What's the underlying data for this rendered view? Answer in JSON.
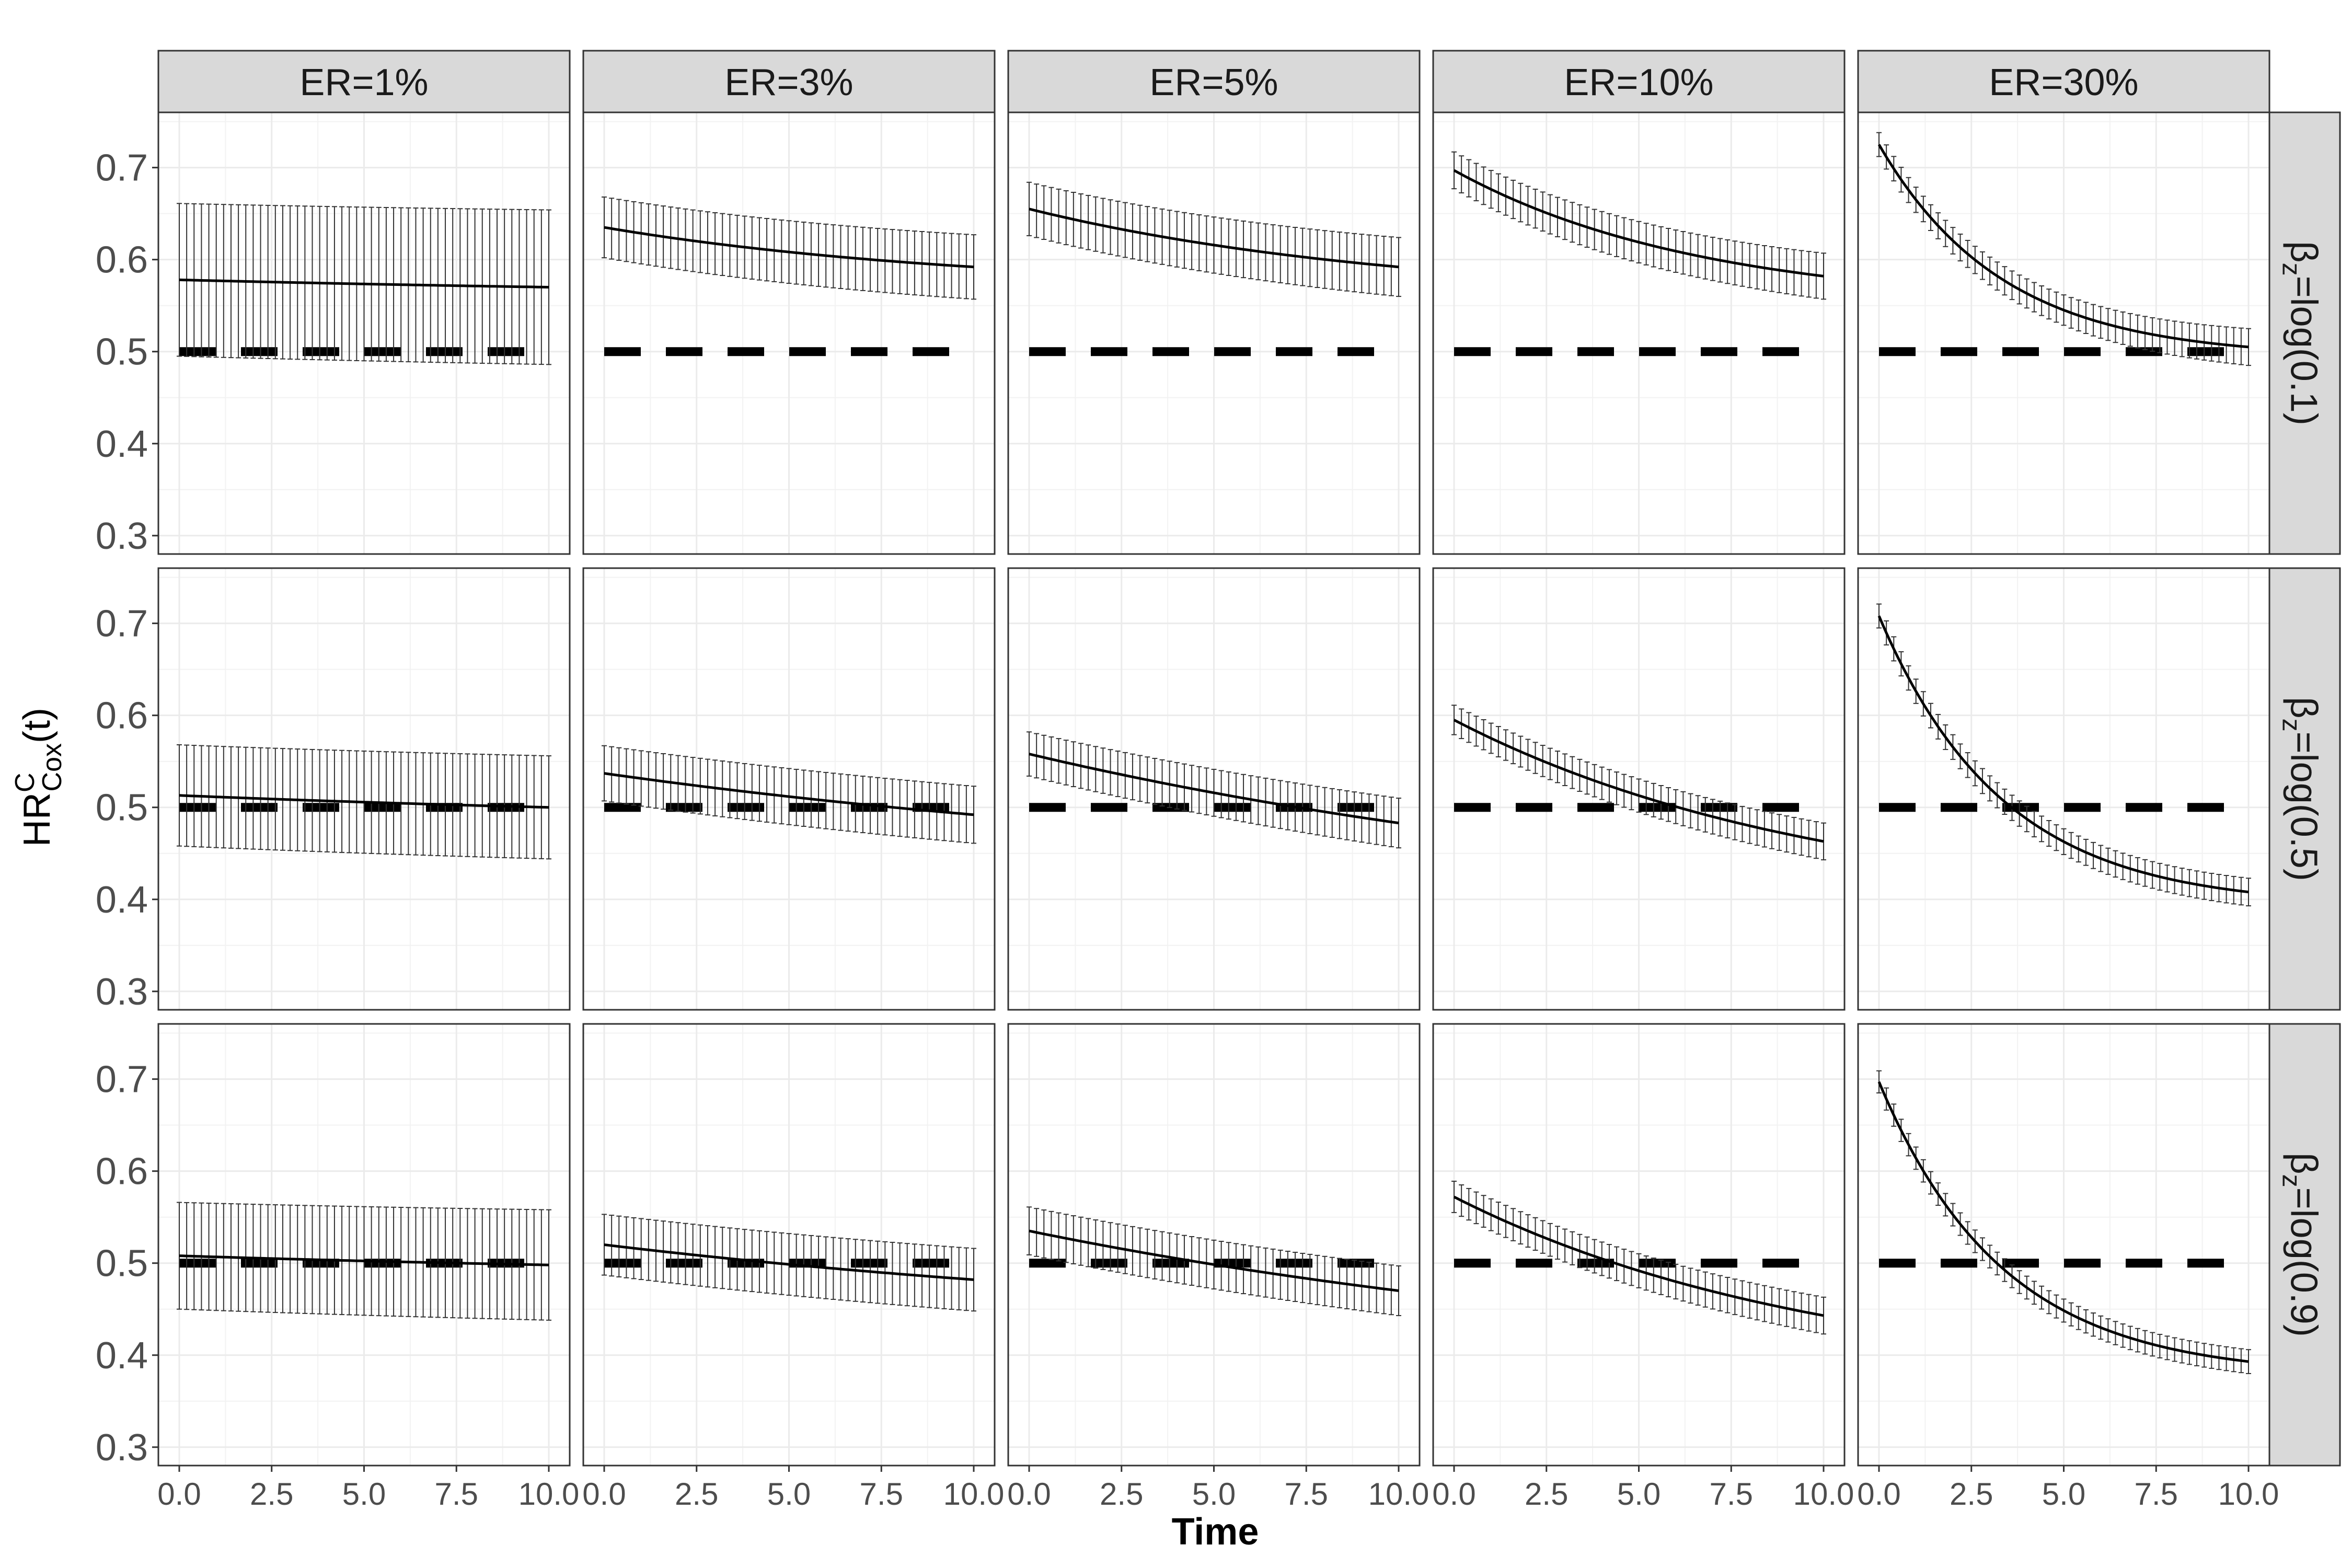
{
  "chart_data": {
    "type": "line",
    "layout": "facet-grid",
    "xlabel": "Time",
    "ylabel": {
      "main": "HR",
      "sup": "C",
      "sub": "Cox",
      "suffix": "(t)"
    },
    "xlim": [
      0,
      10
    ],
    "ylim": [
      0.28,
      0.76
    ],
    "x_ticks": [
      "0.0",
      "2.5",
      "5.0",
      "7.5",
      "10.0"
    ],
    "x_tick_values": [
      0,
      2.5,
      5,
      7.5,
      10
    ],
    "y_ticks": [
      "0.3",
      "0.4",
      "0.5",
      "0.6",
      "0.7"
    ],
    "y_tick_values": [
      0.3,
      0.4,
      0.5,
      0.6,
      0.7
    ],
    "grid": true,
    "reference_line": {
      "value": 0.5,
      "style": "dashed"
    },
    "columns": [
      "ER=1%",
      "ER=3%",
      "ER=5%",
      "ER=10%",
      "ER=30%"
    ],
    "rows": [
      {
        "main": "β",
        "sub": "z",
        "rest": "=log(0.1)"
      },
      {
        "main": "β",
        "sub": "z",
        "rest": "=log(0.5)"
      },
      {
        "main": "β",
        "sub": "z",
        "rest": "=log(0.9)"
      }
    ],
    "curve_model": "y(t) = y_end + (y0 - y_end) * (exp(-k t) - exp(-10 k)) / (1 - exp(-10 k)), t in [0,10]",
    "panels": [
      [
        {
          "y0": 0.578,
          "y_end": 0.57,
          "k": 0.05,
          "band": [
            0.083,
            0.084
          ]
        },
        {
          "y0": 0.635,
          "y_end": 0.592,
          "k": 0.1,
          "band": [
            0.033,
            0.035
          ]
        },
        {
          "y0": 0.655,
          "y_end": 0.592,
          "k": 0.1,
          "band": [
            0.029,
            0.032
          ]
        },
        {
          "y0": 0.697,
          "y_end": 0.582,
          "k": 0.15,
          "band": [
            0.02,
            0.025
          ]
        },
        {
          "y0": 0.725,
          "y_end": 0.505,
          "k": 0.3,
          "band": [
            0.013,
            0.02
          ]
        }
      ],
      [
        {
          "y0": 0.513,
          "y_end": 0.5,
          "k": 0.05,
          "band": [
            0.055,
            0.056
          ]
        },
        {
          "y0": 0.537,
          "y_end": 0.492,
          "k": 0.05,
          "band": [
            0.03,
            0.031
          ]
        },
        {
          "y0": 0.558,
          "y_end": 0.483,
          "k": 0.05,
          "band": [
            0.024,
            0.027
          ]
        },
        {
          "y0": 0.595,
          "y_end": 0.463,
          "k": 0.1,
          "band": [
            0.016,
            0.02
          ]
        },
        {
          "y0": 0.708,
          "y_end": 0.408,
          "k": 0.3,
          "band": [
            0.013,
            0.015
          ]
        }
      ],
      [
        {
          "y0": 0.508,
          "y_end": 0.498,
          "k": 0.05,
          "band": [
            0.058,
            0.06
          ]
        },
        {
          "y0": 0.52,
          "y_end": 0.482,
          "k": 0.05,
          "band": [
            0.033,
            0.034
          ]
        },
        {
          "y0": 0.535,
          "y_end": 0.47,
          "k": 0.05,
          "band": [
            0.026,
            0.027
          ]
        },
        {
          "y0": 0.572,
          "y_end": 0.443,
          "k": 0.1,
          "band": [
            0.017,
            0.02
          ]
        },
        {
          "y0": 0.697,
          "y_end": 0.393,
          "k": 0.3,
          "band": [
            0.012,
            0.013
          ]
        }
      ]
    ]
  }
}
